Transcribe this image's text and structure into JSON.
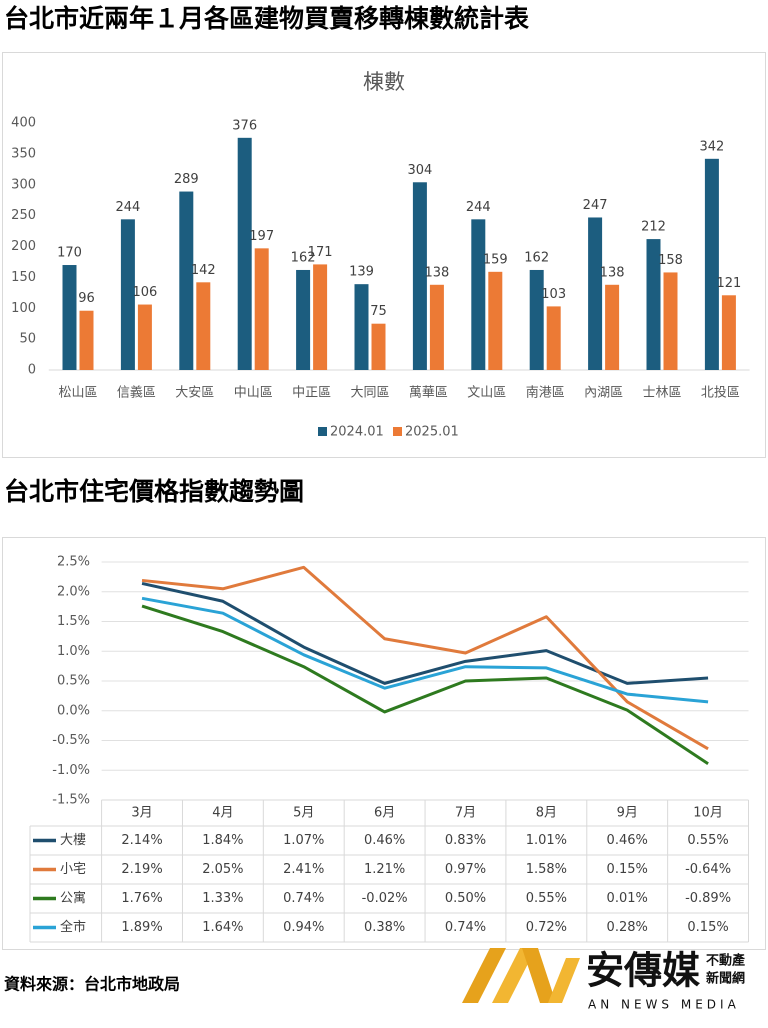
{
  "chart_data": [
    {
      "type": "bar",
      "title": "台北市近兩年１月各區建物買賣移轉棟數統計表",
      "subtitle": "棟數",
      "categories": [
        "松山區",
        "信義區",
        "大安區",
        "中山區",
        "中正區",
        "大同區",
        "萬華區",
        "文山區",
        "南港區",
        "內湖區",
        "士林區",
        "北投區"
      ],
      "series": [
        {
          "name": "2024.01",
          "color": "#1c5d7f",
          "values": [
            170,
            244,
            289,
            376,
            162,
            139,
            304,
            244,
            162,
            247,
            212,
            342
          ]
        },
        {
          "name": "2025.01",
          "color": "#ec7a35",
          "values": [
            96,
            106,
            142,
            197,
            171,
            75,
            138,
            159,
            103,
            138,
            158,
            121
          ]
        }
      ],
      "ylim": [
        0,
        400
      ],
      "yticks": [
        0,
        50,
        100,
        150,
        200,
        250,
        300,
        350,
        400
      ],
      "grid": false,
      "legend": "bottom"
    },
    {
      "type": "line",
      "title": "台北市住宅價格指數趨勢圖",
      "categories": [
        "3月",
        "4月",
        "5月",
        "6月",
        "7月",
        "8月",
        "9月",
        "10月"
      ],
      "series": [
        {
          "name": "大樓",
          "color": "#1f4e6e",
          "values": [
            2.14,
            1.84,
            1.07,
            0.46,
            0.83,
            1.01,
            0.46,
            0.55
          ],
          "value_labels": [
            "2.14%",
            "1.84%",
            "1.07%",
            "0.46%",
            "0.83%",
            "1.01%",
            "0.46%",
            "0.55%"
          ]
        },
        {
          "name": "小宅",
          "color": "#e07a3c",
          "values": [
            2.19,
            2.05,
            2.41,
            1.21,
            0.97,
            1.58,
            0.15,
            -0.64
          ],
          "value_labels": [
            "2.19%",
            "2.05%",
            "2.41%",
            "1.21%",
            "0.97%",
            "1.58%",
            "0.15%",
            "-0.64%"
          ]
        },
        {
          "name": "公寓",
          "color": "#2e7a1f",
          "values": [
            1.76,
            1.33,
            0.74,
            -0.02,
            0.5,
            0.55,
            0.01,
            -0.89
          ],
          "value_labels": [
            "1.76%",
            "1.33%",
            "0.74%",
            "-0.02%",
            "0.50%",
            "0.55%",
            "0.01%",
            "-0.89%"
          ]
        },
        {
          "name": "全市",
          "color": "#2aa3d6",
          "values": [
            1.89,
            1.64,
            0.94,
            0.38,
            0.74,
            0.72,
            0.28,
            0.15
          ],
          "value_labels": [
            "1.89%",
            "1.64%",
            "0.94%",
            "0.38%",
            "0.74%",
            "0.72%",
            "0.28%",
            "0.15%"
          ]
        }
      ],
      "ylim": [
        -1.5,
        2.5
      ],
      "yticks": [
        {
          "value": -1.5,
          "label": "-1.5%"
        },
        {
          "value": -1,
          "label": "-1.0%"
        },
        {
          "value": -0.5,
          "label": "-0.5%"
        },
        {
          "value": 0,
          "label": "0.0%"
        },
        {
          "value": 0.5,
          "label": "0.5%"
        },
        {
          "value": 1,
          "label": "1.0%"
        },
        {
          "value": 1.5,
          "label": "1.5%"
        },
        {
          "value": 2,
          "label": "2.0%"
        },
        {
          "value": 2.5,
          "label": "2.5%"
        }
      ],
      "grid": true,
      "legend": "table"
    }
  ],
  "source": "資料來源：台北市地政局",
  "logo": {
    "name": "安傳媒",
    "tag_top": "不動產",
    "tag_bottom": "新聞網",
    "english": "AN NEWS MEDIA"
  }
}
